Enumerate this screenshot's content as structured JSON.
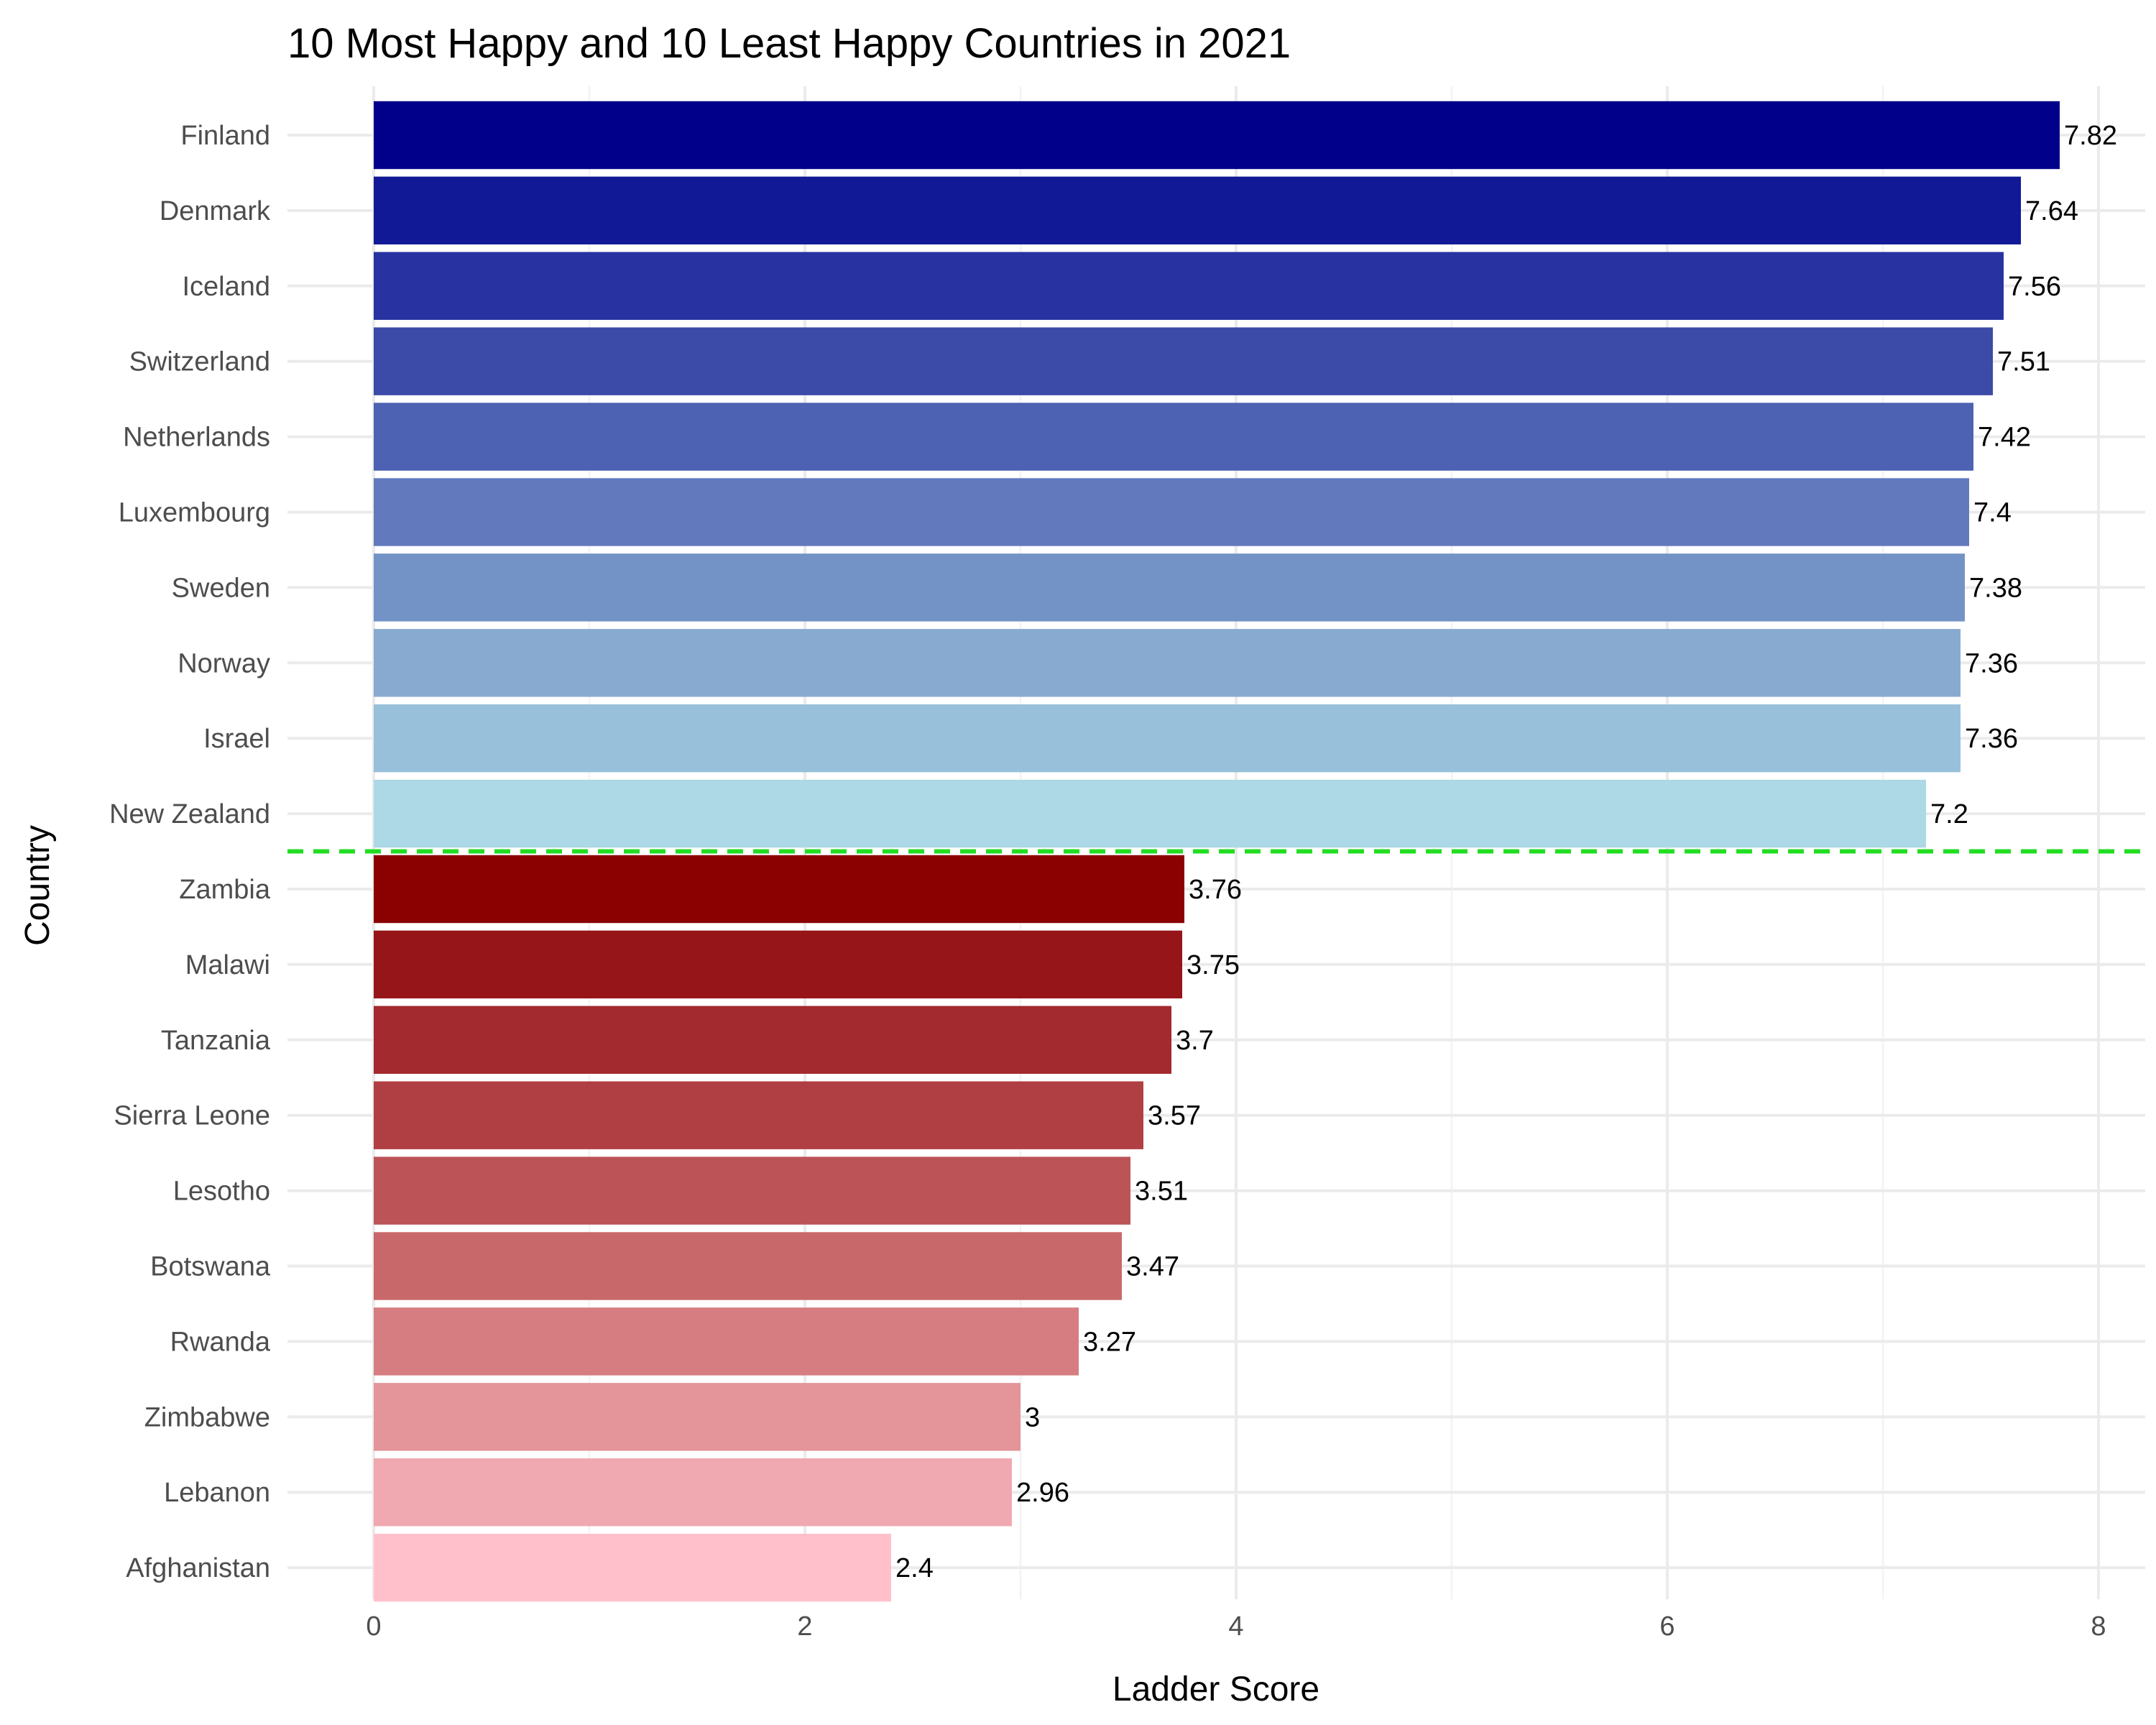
{
  "chart_data": {
    "type": "bar",
    "orientation": "horizontal",
    "title": "10 Most Happy and 10 Least Happy Countries in 2021",
    "xlabel": "Ladder Score",
    "ylabel": "Country",
    "xlim": [
      0,
      8
    ],
    "x_ticks": [
      "0",
      "2",
      "4",
      "6",
      "8"
    ],
    "grid": true,
    "legend": "none",
    "categories": [
      "Finland",
      "Denmark",
      "Iceland",
      "Switzerland",
      "Netherlands",
      "Luxembourg",
      "Sweden",
      "Norway",
      "Israel",
      "New Zealand",
      "Zambia",
      "Malawi",
      "Tanzania",
      "Sierra Leone",
      "Lesotho",
      "Botswana",
      "Rwanda",
      "Zimbabwe",
      "Lebanon",
      "Afghanistan"
    ],
    "values": [
      7.82,
      7.64,
      7.56,
      7.51,
      7.42,
      7.4,
      7.38,
      7.36,
      7.36,
      7.2,
      3.76,
      3.75,
      3.7,
      3.57,
      3.51,
      3.47,
      3.27,
      3,
      2.96,
      2.4
    ],
    "value_labels": [
      "7.82",
      "7.64",
      "7.56",
      "7.51",
      "7.42",
      "7.4",
      "7.38",
      "7.36",
      "7.36",
      "7.2",
      "3.76",
      "3.75",
      "3.7",
      "3.57",
      "3.51",
      "3.47",
      "3.27",
      "3",
      "2.96",
      "2.4"
    ],
    "colors": [
      "#00008b",
      "#121996",
      "#2832a0",
      "#3c4ba8",
      "#4d62b3",
      "#6279bd",
      "#7393c7",
      "#88aad1",
      "#99c0da",
      "#add8e6",
      "#8b0000",
      "#961519",
      "#a32a2e",
      "#b03f43",
      "#bc5457",
      "#c9686b",
      "#d67d82",
      "#e3959a",
      "#f0a9b0",
      "#ffc0cb"
    ],
    "divider": {
      "style": "dashed",
      "color": "#22dd22",
      "between": [
        "New Zealand",
        "Zambia"
      ]
    }
  }
}
